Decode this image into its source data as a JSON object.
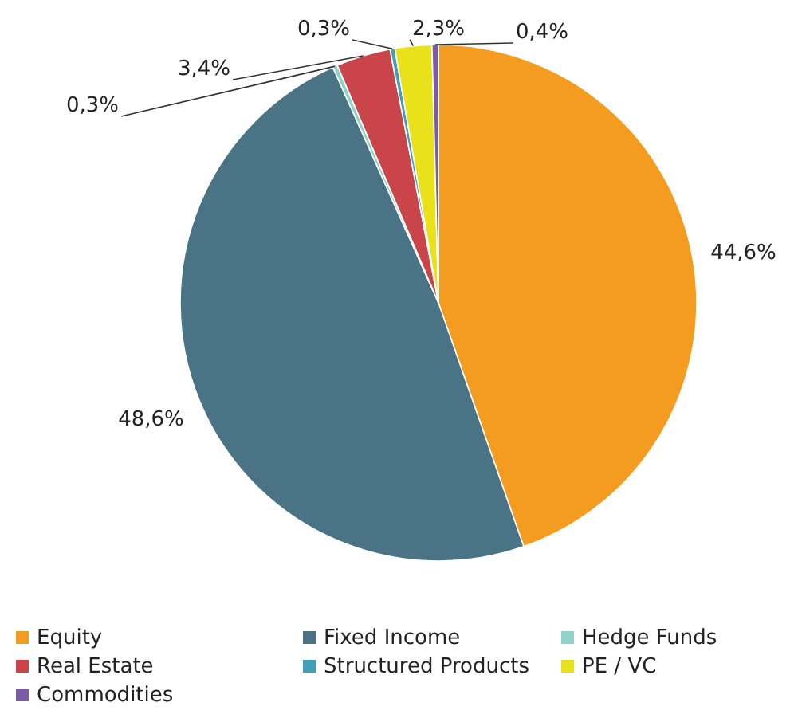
{
  "chart_data": {
    "type": "pie",
    "categories": [
      "Equity",
      "Fixed Income",
      "Hedge Funds",
      "Real Estate",
      "Structured Products",
      "PE / VC",
      "Commodities"
    ],
    "values": [
      44.6,
      48.6,
      0.3,
      3.4,
      0.3,
      2.3,
      0.4
    ],
    "value_labels": [
      "44,6%",
      "48,6%",
      "0,3%",
      "3,4%",
      "0,3%",
      "2,3%",
      "0,4%"
    ],
    "colors": [
      "#f39c1f",
      "#4a7485",
      "#8fd3c8",
      "#c9454a",
      "#3fa0b8",
      "#e9e21a",
      "#7b5aa6"
    ],
    "legend": "bottom"
  }
}
